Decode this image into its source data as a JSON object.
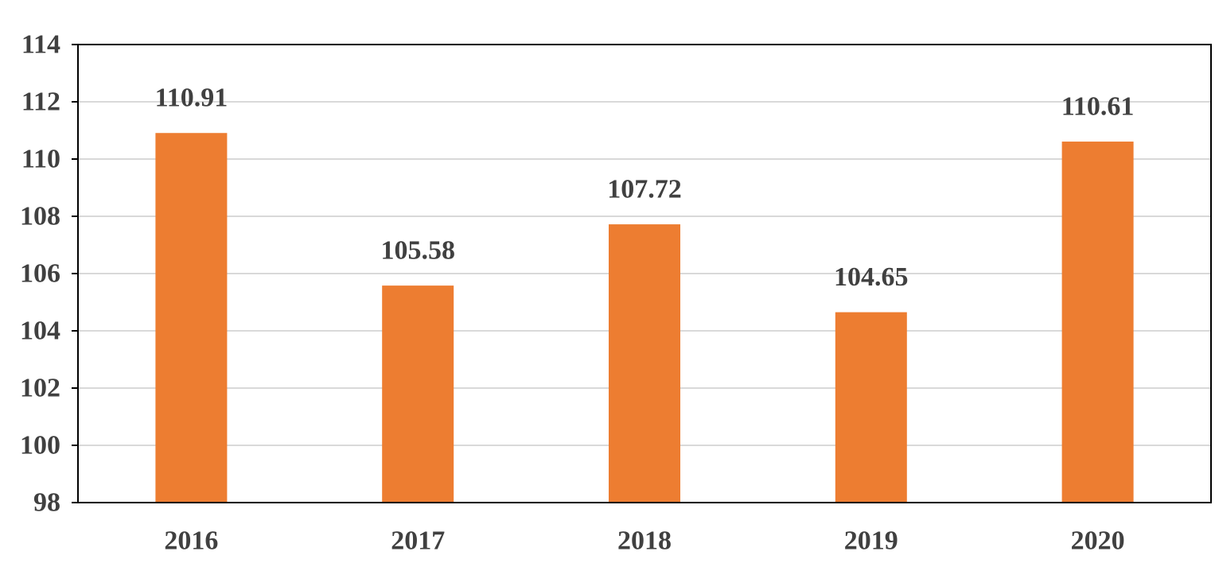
{
  "chart_data": {
    "type": "bar",
    "title": "",
    "xlabel": "",
    "ylabel": "",
    "categories": [
      "2016",
      "2017",
      "2018",
      "2019",
      "2020"
    ],
    "values": [
      110.91,
      105.58,
      107.72,
      104.65,
      110.61
    ],
    "data_labels": [
      "110.91",
      "105.58",
      "107.72",
      "104.65",
      "110.61"
    ],
    "ylim": [
      98,
      114
    ],
    "y_ticks": [
      "98",
      "100",
      "102",
      "104",
      "106",
      "108",
      "110",
      "112",
      "114"
    ],
    "grid": true,
    "legend": "none",
    "colors": {
      "bar": "#ED7D31",
      "grid": "#D9D9D9",
      "frame": "#000000",
      "text": "#404040"
    }
  }
}
